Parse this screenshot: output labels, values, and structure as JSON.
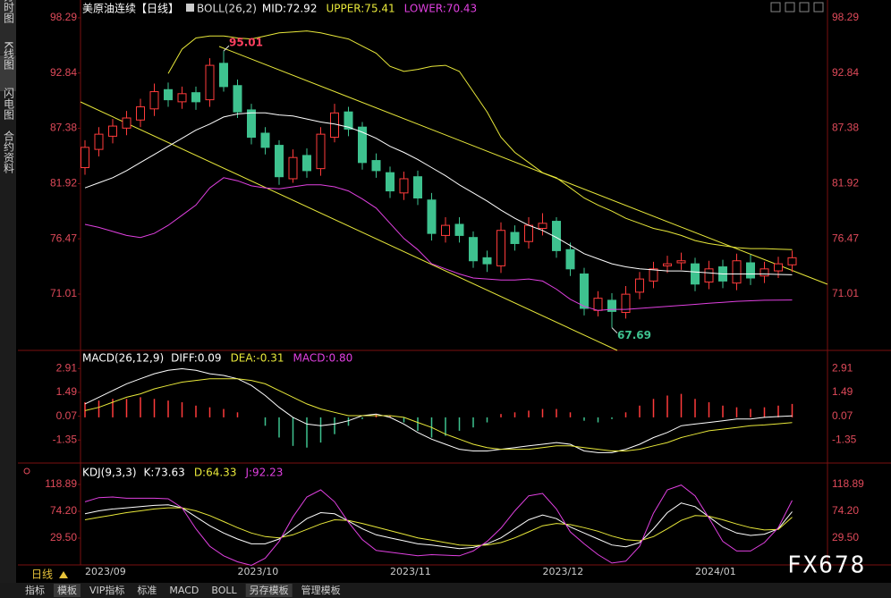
{
  "sidebar_tabs": [
    "分时图",
    "K线图",
    "闪电图",
    "合约资料"
  ],
  "period": "日线",
  "toolbar_tabs": [
    "指标",
    "模板",
    "VIP指标",
    "标准",
    "MACD",
    "BOLL",
    "另存模板",
    "管理模板"
  ],
  "watermark": "FX678",
  "chart_data": [
    {
      "type": "candlestick",
      "title": "美原油连续【日线】",
      "indicator": "BOLL(26,2)",
      "indicator_values": [
        "MID:72.92",
        "UPPER:75.41",
        "LOWER:70.43"
      ],
      "categories": [
        "2023/09",
        null,
        null,
        null,
        null,
        null,
        null,
        null,
        null,
        null,
        null,
        "2023/10",
        null,
        null,
        null,
        null,
        null,
        null,
        null,
        null,
        null,
        null,
        "2023/11",
        null,
        null,
        null,
        null,
        null,
        null,
        null,
        null,
        null,
        null,
        "2023/12",
        null,
        null,
        null,
        null,
        null,
        null,
        null,
        null,
        null,
        null,
        "2024/01",
        null,
        null,
        null,
        null,
        null,
        null,
        null
      ],
      "open": [
        83.5,
        85.3,
        86.6,
        87.4,
        88.2,
        89.3,
        91.2,
        90.0,
        90.9,
        90.2,
        93.8,
        91.6,
        89.2,
        86.9,
        85.7,
        82.4,
        84.7,
        83.4,
        86.5,
        89.0,
        87.5,
        84.2,
        83.0,
        81.0,
        82.6,
        80.3,
        76.8,
        77.9,
        76.6,
        74.6,
        73.8,
        77.1,
        76.2,
        77.5,
        78.2,
        75.4,
        73.0,
        69.4,
        70.4,
        69.2,
        71.2,
        72.3,
        73.8,
        74.1,
        74.0,
        72.2,
        73.7,
        72.1,
        74.1,
        72.8,
        73.3,
        73.9
      ],
      "high": [
        86.2,
        87.5,
        88.3,
        89.1,
        90.3,
        91.8,
        91.9,
        91.5,
        91.5,
        94.3,
        95.01,
        92.2,
        89.8,
        87.5,
        86.2,
        85.3,
        85.4,
        87.5,
        89.8,
        89.5,
        88.0,
        84.9,
        83.6,
        83.1,
        83.2,
        81.0,
        78.6,
        78.6,
        77.2,
        75.3,
        78.1,
        77.8,
        78.6,
        79.0,
        78.6,
        76.1,
        73.6,
        71.3,
        71.1,
        71.8,
        73.2,
        74.2,
        74.8,
        75.1,
        74.6,
        74.3,
        74.4,
        75.0,
        74.9,
        74.2,
        74.7,
        75.3
      ],
      "low": [
        82.8,
        84.6,
        85.9,
        86.7,
        87.5,
        88.6,
        89.5,
        89.3,
        89.2,
        89.5,
        91.0,
        88.4,
        85.8,
        84.8,
        81.8,
        82.0,
        82.5,
        82.7,
        86.0,
        86.6,
        83.3,
        82.5,
        80.5,
        80.3,
        79.8,
        76.3,
        76.1,
        76.1,
        73.6,
        73.2,
        73.1,
        75.3,
        75.5,
        76.8,
        74.6,
        72.8,
        68.9,
        68.8,
        67.69,
        68.6,
        70.5,
        71.6,
        73.1,
        73.4,
        71.3,
        71.5,
        71.6,
        71.4,
        71.9,
        72.1,
        72.6,
        73.2
      ],
      "close": [
        85.5,
        86.8,
        87.6,
        88.4,
        89.5,
        91.0,
        90.2,
        90.8,
        90.0,
        93.6,
        91.5,
        89.0,
        86.5,
        85.5,
        82.6,
        84.5,
        83.2,
        86.8,
        88.9,
        87.3,
        84.0,
        83.2,
        81.2,
        82.4,
        80.5,
        77.0,
        77.8,
        76.8,
        74.3,
        74.0,
        77.3,
        76.0,
        77.8,
        78.0,
        75.3,
        73.5,
        69.6,
        70.6,
        69.3,
        71.0,
        72.5,
        73.5,
        74.0,
        74.3,
        72.0,
        73.5,
        72.3,
        74.3,
        72.6,
        73.5,
        74.0,
        74.6
      ],
      "up_color": "#ff3b3b",
      "down_color": "#3ec28f",
      "series": [
        {
          "color": "#ffffff",
          "values": [
            81.5,
            82,
            82.5,
            83.2,
            84,
            84.8,
            85.6,
            86.4,
            87.2,
            87.8,
            88.5,
            88.8,
            88.9,
            88.9,
            88.7,
            88.6,
            88.3,
            88,
            87.8,
            87.5,
            87,
            86.4,
            85.6,
            85,
            84.3,
            83.5,
            82.7,
            81.8,
            81,
            80.2,
            79.3,
            78.5,
            77.8,
            77.3,
            76.6,
            75.8,
            75,
            74.5,
            74,
            73.7,
            73.5,
            73.4,
            73.3,
            73.3,
            73.2,
            73.1,
            73,
            73,
            73,
            73,
            72.95,
            72.92
          ]
        },
        {
          "color": "#e8e83a",
          "values": [
            null,
            null,
            null,
            null,
            null,
            null,
            92.8,
            95.2,
            96.3,
            96.5,
            96.5,
            96.3,
            96.2,
            96.5,
            96.8,
            96.9,
            97,
            96.8,
            96.5,
            96.2,
            95.5,
            94.8,
            93.5,
            93,
            93.2,
            93.5,
            93.6,
            93,
            91,
            89,
            86.5,
            85,
            84,
            83,
            82.5,
            81.5,
            80.5,
            79.8,
            79.2,
            78.5,
            78,
            77.5,
            77.2,
            76.8,
            76.3,
            76,
            75.8,
            75.6,
            75.5,
            75.5,
            75.45,
            75.41
          ]
        },
        {
          "color": "#e040e0",
          "values": [
            77.9,
            77.6,
            77.2,
            76.8,
            76.6,
            77,
            77.8,
            78.8,
            79.8,
            81.5,
            82.5,
            82.2,
            81.7,
            81.5,
            81.4,
            81.6,
            81.8,
            81.8,
            81.6,
            81.2,
            80.4,
            79.5,
            78,
            76.5,
            75.4,
            74,
            73.5,
            73,
            72.6,
            72.5,
            72.4,
            72.4,
            72.5,
            72.3,
            71.5,
            70.5,
            69.8,
            69.4,
            69.5,
            69.5,
            69.6,
            69.7,
            69.8,
            69.9,
            70,
            70.1,
            70.2,
            70.3,
            70.35,
            70.4,
            70.42,
            70.43
          ]
        }
      ],
      "annotations": [
        {
          "value": 95.01,
          "color": "#ff4060"
        },
        {
          "value": 67.69,
          "color": "#3ec28f"
        }
      ],
      "ylim": [
        65.45,
        99.61
      ],
      "yticks": [
        98.29,
        92.84,
        87.38,
        81.92,
        76.47,
        71.01
      ]
    },
    {
      "type": "macd",
      "title": "MACD(26,12,9)",
      "indicator_values": [
        "DIFF:0.09",
        "DEA:-0.31",
        "MACD:0.80"
      ],
      "bars": [
        0.9,
        1.0,
        1.1,
        1.1,
        1.2,
        1.1,
        1.0,
        0.9,
        0.7,
        0.6,
        0.5,
        0.3,
        0.0,
        -0.5,
        -1.2,
        -1.7,
        -1.8,
        -1.5,
        -1.0,
        -0.5,
        -0.1,
        0.2,
        0.1,
        -0.3,
        -0.8,
        -1.2,
        -1.1,
        -0.8,
        -0.6,
        -0.3,
        0.2,
        0.3,
        0.4,
        0.5,
        0.5,
        0.3,
        -0.2,
        -0.3,
        -0.1,
        0.3,
        0.7,
        1.1,
        1.3,
        1.4,
        1.1,
        0.9,
        0.7,
        0.6,
        0.5,
        0.6,
        0.7,
        0.8
      ],
      "series": [
        {
          "color": "#ffffff",
          "values": [
            0.8,
            1.2,
            1.6,
            2.0,
            2.3,
            2.6,
            2.8,
            2.9,
            2.8,
            2.6,
            2.5,
            2.3,
            1.9,
            1.3,
            0.6,
            0.0,
            -0.4,
            -0.5,
            -0.4,
            -0.2,
            0.1,
            0.2,
            0.0,
            -0.4,
            -0.9,
            -1.3,
            -1.6,
            -1.9,
            -2.0,
            -2.0,
            -1.9,
            -1.8,
            -1.7,
            -1.6,
            -1.5,
            -1.6,
            -2.0,
            -2.1,
            -2.1,
            -1.9,
            -1.6,
            -1.2,
            -0.9,
            -0.5,
            -0.4,
            -0.3,
            -0.2,
            -0.1,
            -0.1,
            0.0,
            0.05,
            0.09
          ]
        },
        {
          "color": "#e8e83a",
          "values": [
            0.4,
            0.6,
            0.9,
            1.2,
            1.4,
            1.7,
            1.9,
            2.1,
            2.2,
            2.3,
            2.3,
            2.3,
            2.2,
            2.0,
            1.6,
            1.2,
            0.8,
            0.5,
            0.3,
            0.1,
            0.1,
            0.1,
            0.1,
            0.0,
            -0.3,
            -0.6,
            -1.0,
            -1.3,
            -1.6,
            -1.8,
            -1.9,
            -1.9,
            -1.9,
            -1.8,
            -1.7,
            -1.7,
            -1.8,
            -1.9,
            -2.0,
            -2.0,
            -1.9,
            -1.7,
            -1.5,
            -1.2,
            -1.0,
            -0.8,
            -0.7,
            -0.6,
            -0.5,
            -0.45,
            -0.38,
            -0.31
          ]
        }
      ],
      "ylim": [
        -2.72,
        3.83
      ],
      "yticks": [
        2.91,
        1.49,
        0.07,
        -1.35
      ]
    },
    {
      "type": "kdj",
      "title": "KDJ(9,3,3)",
      "indicator_values": [
        "K:73.63",
        "D:64.33",
        "J:92.23"
      ],
      "series": [
        {
          "color": "#ffffff",
          "values": [
            70,
            75,
            78,
            80,
            82,
            84,
            85,
            80,
            65,
            50,
            38,
            28,
            20,
            20,
            28,
            45,
            62,
            72,
            70,
            58,
            45,
            35,
            30,
            25,
            20,
            18,
            15,
            12,
            14,
            20,
            30,
            45,
            60,
            68,
            62,
            48,
            38,
            28,
            18,
            15,
            22,
            45,
            72,
            88,
            82,
            65,
            48,
            38,
            34,
            36,
            45,
            73.63
          ]
        },
        {
          "color": "#e8e83a",
          "values": [
            60,
            64,
            68,
            72,
            75,
            78,
            80,
            80,
            75,
            67,
            57,
            47,
            38,
            32,
            30,
            35,
            44,
            53,
            60,
            59,
            54,
            48,
            42,
            36,
            30,
            26,
            22,
            18,
            17,
            18,
            22,
            30,
            40,
            50,
            54,
            52,
            47,
            41,
            33,
            27,
            25,
            32,
            45,
            59,
            67,
            66,
            60,
            53,
            47,
            43,
            44,
            64.33
          ]
        },
        {
          "color": "#e040e0",
          "values": [
            90,
            97,
            98,
            96,
            96,
            96,
            95,
            80,
            45,
            16,
            0,
            -10,
            -16,
            -4,
            24,
            65,
            98,
            110,
            90,
            56,
            27,
            9,
            6,
            3,
            0,
            2,
            1,
            0,
            8,
            24,
            46,
            75,
            100,
            104,
            78,
            40,
            20,
            2,
            -12,
            -9,
            16,
            71,
            110,
            118,
            100,
            63,
            24,
            8,
            8,
            22,
            47,
            92.23
          ]
        }
      ],
      "ylim": [
        -15.2,
        148.7
      ],
      "yticks": [
        118.89,
        {
          "value": 74.2,
          "label": "74.20"
        },
        {
          "value": 29.5,
          "label": "29.50"
        }
      ]
    }
  ]
}
